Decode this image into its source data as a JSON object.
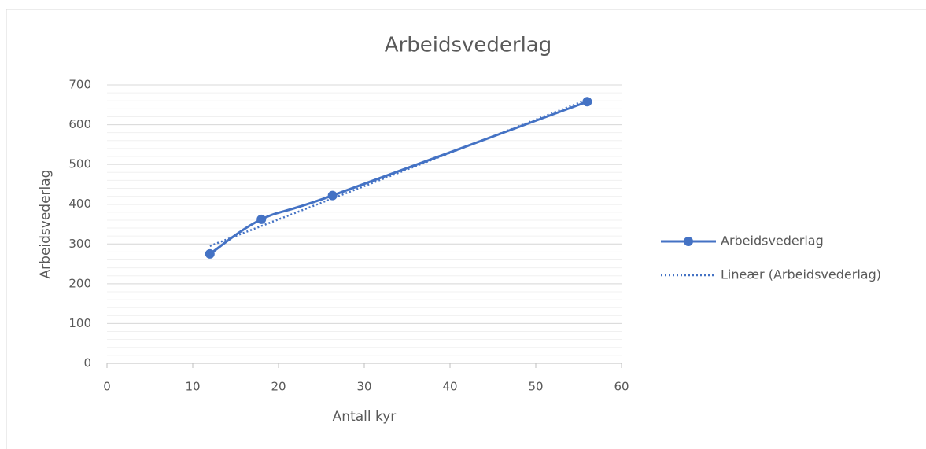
{
  "chart_data": {
    "type": "scatter_line",
    "title": "Arbeidsvederlag",
    "x_label": "Antall kyr",
    "y_label": "Arbeidsvederlag",
    "series": [
      {
        "name": "Arbeidsvederlag",
        "color": "#4472c4",
        "style": "solid",
        "markers": true,
        "x": [
          12,
          18,
          26.3,
          56
        ],
        "values": [
          275,
          362,
          422,
          658
        ]
      },
      {
        "name": "Lineær (Arbeidsvederlag)",
        "color": "#4472c4",
        "style": "dotted",
        "markers": false,
        "x": [
          12,
          56
        ],
        "values": [
          295,
          663
        ]
      }
    ],
    "xlim": [
      0,
      60
    ],
    "xticks": [
      0,
      10,
      20,
      30,
      40,
      50,
      60
    ],
    "ylim": [
      0,
      700
    ],
    "yticks": [
      0,
      100,
      200,
      300,
      400,
      500,
      600,
      700
    ],
    "grid": true,
    "minor_grid_step": 20,
    "legend": "right"
  }
}
